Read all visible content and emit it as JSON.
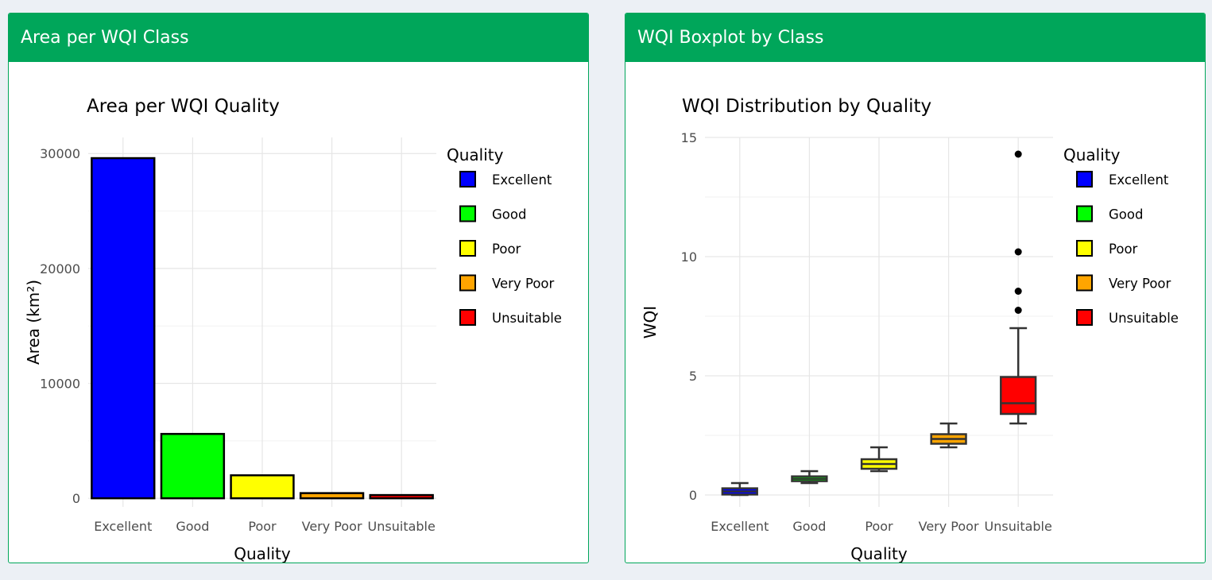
{
  "panels": [
    {
      "header": "Area per WQI Class"
    },
    {
      "header": "WQI Boxplot by Class"
    }
  ],
  "chart_data": [
    {
      "type": "bar",
      "title": "Area per WQI Quality",
      "xlabel": "Quality",
      "ylabel": "Area (km²)",
      "categories": [
        "Excellent",
        "Good",
        "Poor",
        "Very Poor",
        "Unsuitable"
      ],
      "values": [
        29600,
        5600,
        2000,
        450,
        280
      ],
      "colors": [
        "#0000ff",
        "#00ff00",
        "#ffff00",
        "#ffa500",
        "#ff0000"
      ],
      "ylim": [
        -750,
        31400
      ],
      "yticks": [
        0,
        10000,
        20000,
        30000
      ],
      "grid": true,
      "legend": {
        "title": "Quality",
        "placement": "right",
        "items": [
          "Excellent",
          "Good",
          "Poor",
          "Very Poor",
          "Unsuitable"
        ]
      }
    },
    {
      "type": "boxplot",
      "title": "WQI Distribution by Quality",
      "xlabel": "Quality",
      "ylabel": "WQI",
      "categories": [
        "Excellent",
        "Good",
        "Poor",
        "Very Poor",
        "Unsuitable"
      ],
      "boxes": [
        {
          "whisker_low": 0.0,
          "q1": 0.02,
          "median": 0.15,
          "q3": 0.28,
          "whisker_high": 0.5,
          "outliers": []
        },
        {
          "whisker_low": 0.5,
          "q1": 0.58,
          "median": 0.68,
          "q3": 0.78,
          "whisker_high": 1.0,
          "outliers": []
        },
        {
          "whisker_low": 1.0,
          "q1": 1.1,
          "median": 1.3,
          "q3": 1.5,
          "whisker_high": 2.0,
          "outliers": []
        },
        {
          "whisker_low": 2.0,
          "q1": 2.15,
          "median": 2.35,
          "q3": 2.55,
          "whisker_high": 3.0,
          "outliers": []
        },
        {
          "whisker_low": 3.0,
          "q1": 3.4,
          "median": 3.85,
          "q3": 4.95,
          "whisker_high": 7.0,
          "outliers": [
            7.75,
            8.55,
            10.2,
            14.3
          ]
        }
      ],
      "colors": [
        "#0000ff",
        "#00ff00",
        "#ffff00",
        "#ffa500",
        "#ff0000"
      ],
      "ylim": [
        -0.5,
        15.0
      ],
      "yticks": [
        0,
        5,
        10,
        15
      ],
      "grid": true,
      "legend": {
        "title": "Quality",
        "placement": "right",
        "items": [
          "Excellent",
          "Good",
          "Poor",
          "Very Poor",
          "Unsuitable"
        ]
      }
    }
  ]
}
